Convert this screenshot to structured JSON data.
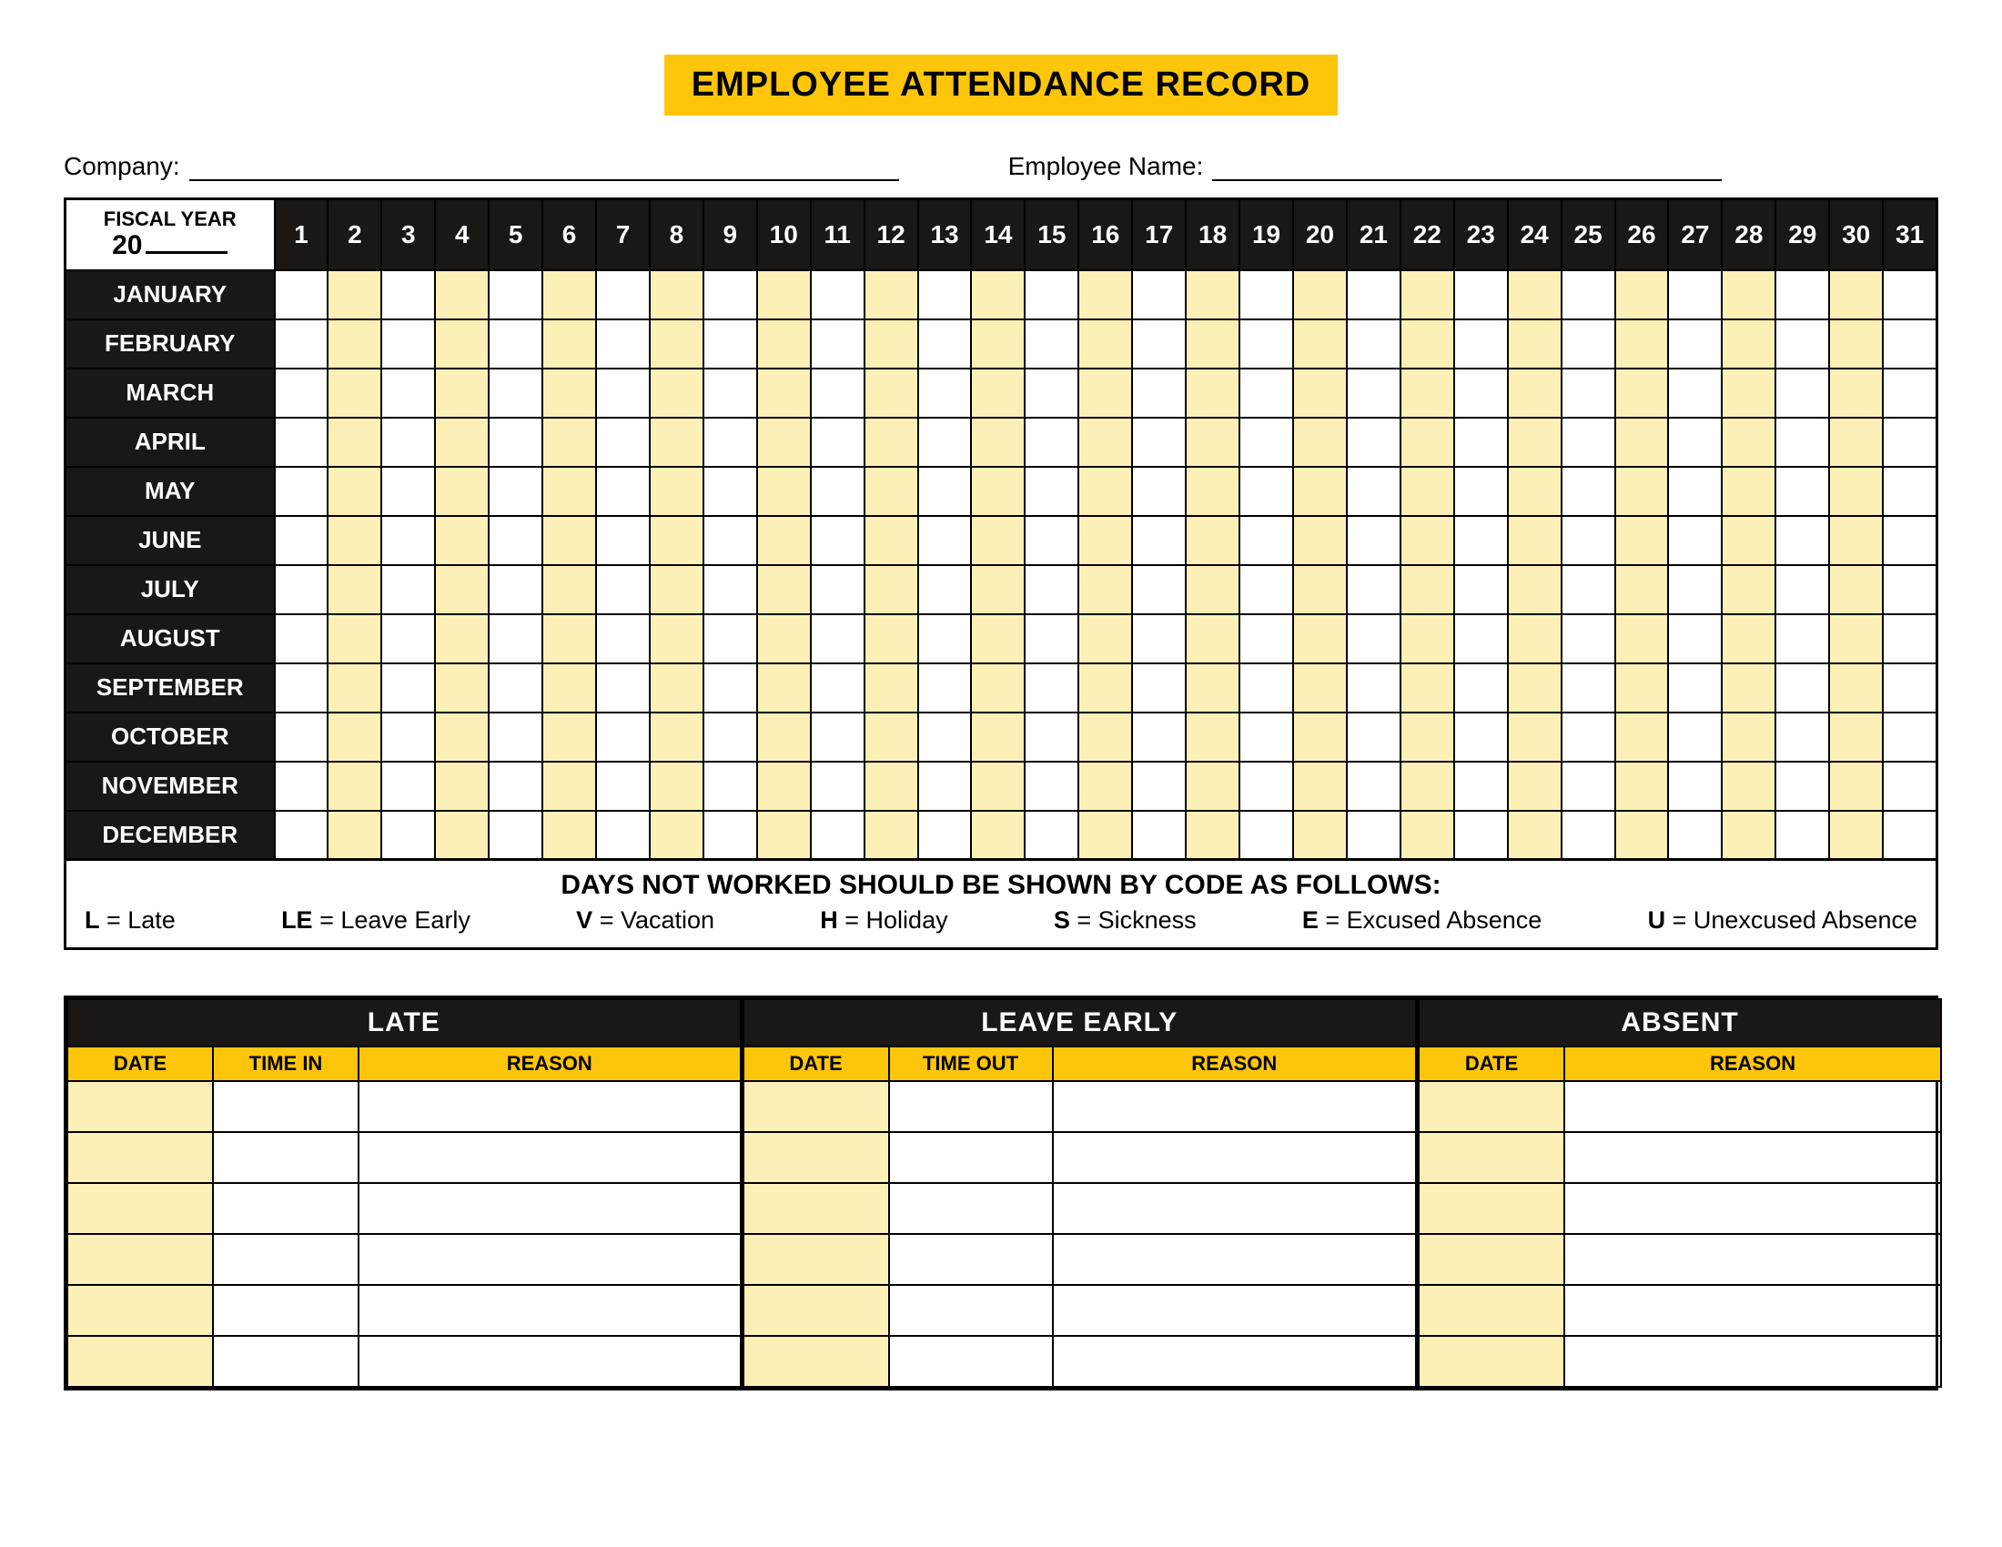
{
  "colors": {
    "banner_bg": "#fdc60b",
    "header_black": "#1a1714",
    "alt_yellow": "#fdf0b6",
    "subheader_yellow": "#fdc60b",
    "white": "#ffffff"
  },
  "title": "EMPLOYEE ATTENDANCE RECORD",
  "fields": {
    "company_label": "Company:",
    "employee_label": "Employee Name:"
  },
  "calendar": {
    "fiscal_label_line1": "FISCAL YEAR",
    "fiscal_label_prefix": "20",
    "days": [
      "1",
      "2",
      "3",
      "4",
      "5",
      "6",
      "7",
      "8",
      "9",
      "10",
      "11",
      "12",
      "13",
      "14",
      "15",
      "16",
      "17",
      "18",
      "19",
      "20",
      "21",
      "22",
      "23",
      "24",
      "25",
      "26",
      "27",
      "28",
      "29",
      "30",
      "31"
    ],
    "months": [
      "JANUARY",
      "FEBRUARY",
      "MARCH",
      "APRIL",
      "MAY",
      "JUNE",
      "JULY",
      "AUGUST",
      "SEPTEMBER",
      "OCTOBER",
      "NOVEMBER",
      "DECEMBER"
    ],
    "alt_column_pattern": "odd_days_white_even_days_yellow_from_index1",
    "day_colors_note": "cells at day index 1,3,5... (i.e. days 2,4,6,...) get alt_yellow"
  },
  "legend": {
    "title": "DAYS NOT WORKED SHOULD BE SHOWN BY CODE AS FOLLOWS:",
    "items": [
      {
        "code": "L",
        "label": "Late"
      },
      {
        "code": "LE",
        "label": "Leave Early"
      },
      {
        "code": "V",
        "label": "Vacation"
      },
      {
        "code": "H",
        "label": "Holiday"
      },
      {
        "code": "S",
        "label": "Sickness"
      },
      {
        "code": "E",
        "label": "Excused Absence"
      },
      {
        "code": "U",
        "label": "Unexcused Absence"
      }
    ]
  },
  "bottom": {
    "row_count": 6,
    "sections": {
      "late": {
        "title": "LATE",
        "columns": [
          "DATE",
          "TIME IN",
          "REASON"
        ]
      },
      "leave": {
        "title": "LEAVE EARLY",
        "columns": [
          "DATE",
          "TIME OUT",
          "REASON"
        ]
      },
      "absent": {
        "title": "ABSENT",
        "columns": [
          "DATE",
          "REASON"
        ]
      }
    },
    "first_column_tint": "alt_yellow"
  }
}
